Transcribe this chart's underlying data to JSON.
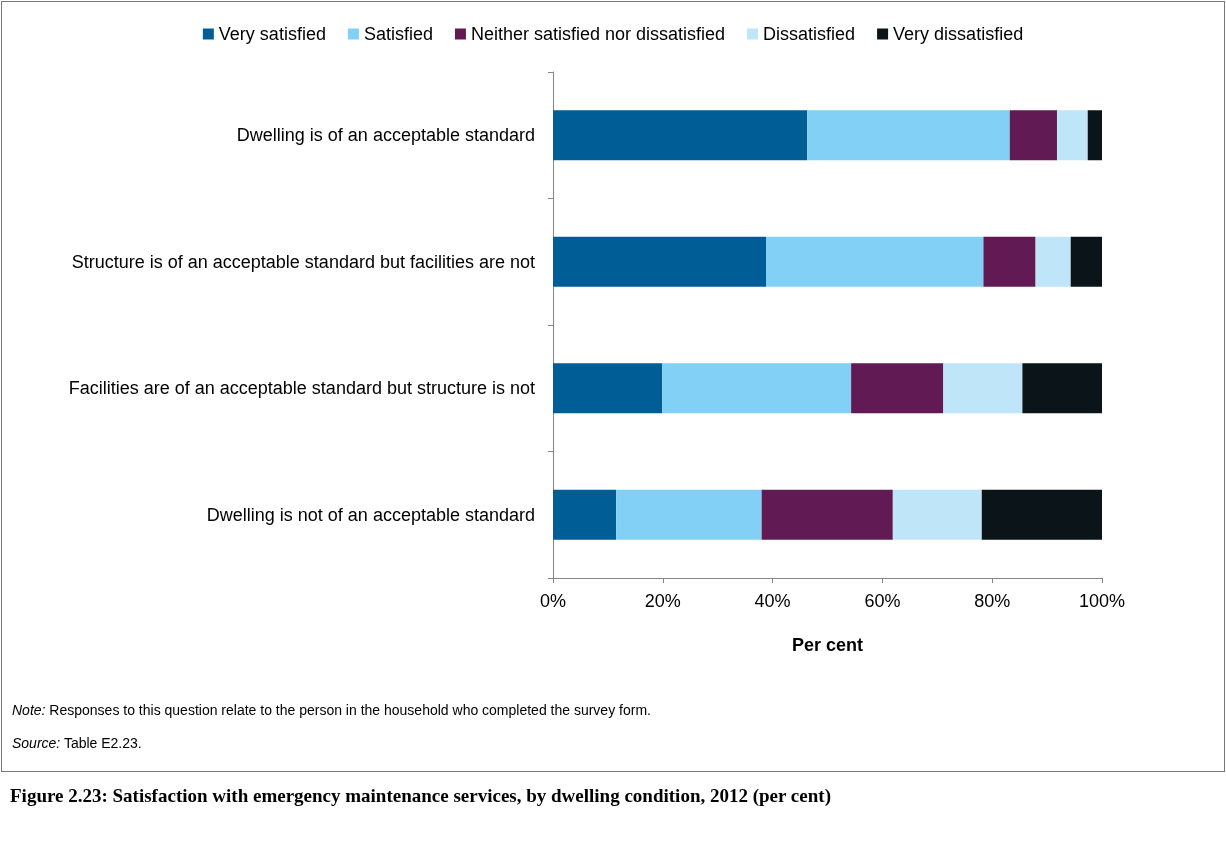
{
  "chart_data": {
    "type": "bar",
    "orientation": "horizontal",
    "stacked": true,
    "title": "Figure 2.23: Satisfaction with emergency maintenance services, by dwelling condition, 2012 (per cent)",
    "xlabel": "Per cent",
    "categories": [
      "Dwelling is of an acceptable standard",
      "Structure is of an acceptable standard but facilities are not",
      "Facilities are of an acceptable standard but structure is not",
      "Dwelling is not of an acceptable standard"
    ],
    "series": [
      {
        "name": "Very satisfied",
        "color": "#005d96",
        "values": [
          46.3,
          38.8,
          19.9,
          11.5
        ]
      },
      {
        "name": "Satisfied",
        "color": "#82d0f5",
        "values": [
          36.9,
          39.6,
          34.4,
          26.5
        ]
      },
      {
        "name": "Neither satisfied nor dissatisfied",
        "color": "#621a55",
        "values": [
          8.6,
          9.5,
          16.8,
          23.9
        ]
      },
      {
        "name": "Dissatisfied",
        "color": "#bfe6f8",
        "values": [
          5.6,
          6.4,
          14.4,
          16.2
        ]
      },
      {
        "name": "Very dissatisfied",
        "color": "#0a1419",
        "values": [
          2.6,
          5.7,
          14.5,
          21.9
        ]
      }
    ],
    "xlim": [
      0,
      100
    ],
    "xticks": [
      {
        "value": 0,
        "label": "0%"
      },
      {
        "value": 20,
        "label": "20%"
      },
      {
        "value": 40,
        "label": "40%"
      },
      {
        "value": 60,
        "label": "60%"
      },
      {
        "value": 80,
        "label": "80%"
      },
      {
        "value": 100,
        "label": "100%"
      }
    ],
    "grid": false,
    "legend": "top",
    "annotations": [
      "Note: Responses to this question relate to the person in the household who completed the survey form.",
      "Source: Table E2.23."
    ]
  }
}
